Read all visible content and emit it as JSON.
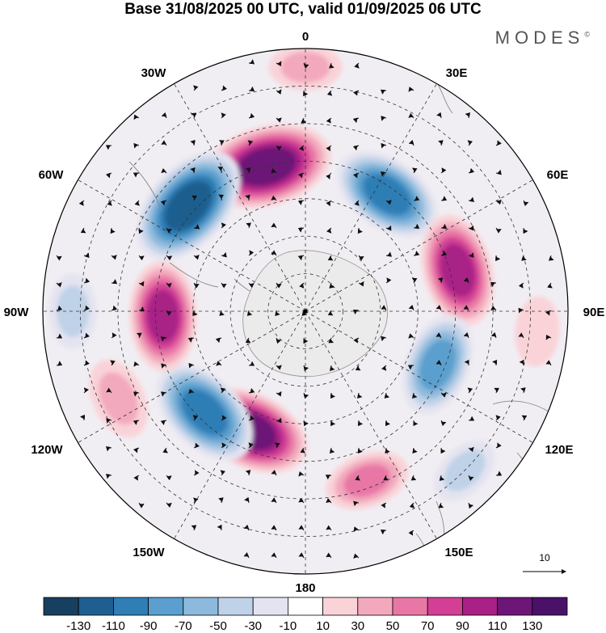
{
  "title": "Base 31/08/2025 00 UTC, valid 01/09/2025 06 UTC",
  "brand": "MODES",
  "brand_mark": "©",
  "longitude_labels": {
    "lon_0": "0",
    "lon_30e": "30E",
    "lon_60e": "60E",
    "lon_90e": "90E",
    "lon_120e": "120E",
    "lon_150e": "150E",
    "lon_180": "180",
    "lon_150w": "150W",
    "lon_120w": "120W",
    "lon_90w": "90W",
    "lon_60w": "60W",
    "lon_30w": "30W"
  },
  "vector_scale": {
    "label": "10"
  },
  "colorbar": {
    "ticks": [
      "-130",
      "-110",
      "-90",
      "-70",
      "-50",
      "-30",
      "-10",
      "10",
      "30",
      "50",
      "70",
      "90",
      "110",
      "130"
    ],
    "colors": [
      "#173f5f",
      "#1f5f8f",
      "#2f7eb6",
      "#5a9fce",
      "#8db9dc",
      "#bfd2e8",
      "#e4e4f0",
      "#ffffff",
      "#f9d3d8",
      "#f3a9bd",
      "#e877a6",
      "#d33f95",
      "#a92086",
      "#6c1677",
      "#4a1168"
    ]
  },
  "anomaly_cells": [
    {
      "lon": 345,
      "lat": -50,
      "value": 125
    },
    {
      "lon": 312,
      "lat": -48,
      "value": -120
    },
    {
      "lon": 35,
      "lat": -52,
      "value": -95
    },
    {
      "lon": 75,
      "lat": -48,
      "value": 95
    },
    {
      "lon": 112,
      "lat": -52,
      "value": -80
    },
    {
      "lon": 205,
      "lat": -55,
      "value": 110
    },
    {
      "lon": 225,
      "lat": -52,
      "value": -100
    },
    {
      "lon": 268,
      "lat": -52,
      "value": 90
    },
    {
      "lon": 245,
      "lat": -35,
      "value": 45
    },
    {
      "lon": 160,
      "lat": -42,
      "value": 50
    },
    {
      "lon": 0,
      "lat": -25,
      "value": 30
    },
    {
      "lon": 270,
      "lat": -28,
      "value": -35
    },
    {
      "lon": 135,
      "lat": -30,
      "value": -30
    },
    {
      "lon": 95,
      "lat": -28,
      "value": 25
    }
  ]
}
